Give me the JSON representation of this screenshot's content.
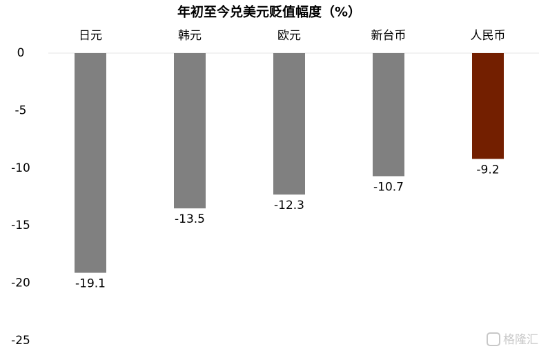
{
  "chart_data": {
    "type": "bar",
    "title": "年初至今兑美元贬值幅度（%）",
    "categories": [
      "日元",
      "韩元",
      "欧元",
      "新台币",
      "人民币"
    ],
    "values": [
      -19.1,
      -13.5,
      -12.3,
      -10.7,
      -9.2
    ],
    "colors": [
      "#808080",
      "#808080",
      "#808080",
      "#808080",
      "#731f00"
    ],
    "ylim": [
      -25,
      0
    ],
    "yticks": [
      0,
      -5,
      -10,
      -15,
      -20,
      -25
    ],
    "grid": false,
    "watermark": "格隆汇"
  }
}
